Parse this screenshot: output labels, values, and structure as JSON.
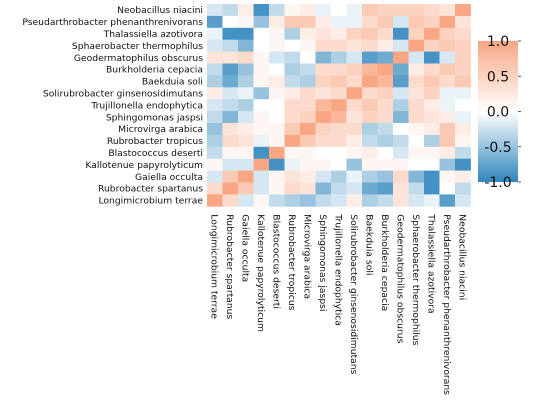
{
  "chart_data": {
    "type": "heatmap",
    "row_labels": [
      "Neobacillus niacini",
      "Pseudarthrobacter phenanthrenivorans",
      "Thalassiella azotivora",
      "Sphaerobacter thermophilus",
      "Geodermatophilus obscurus",
      "Burkholderia cepacia",
      "Baekduia soli",
      "Solirubrobacter ginsenosidimutans",
      "Trujillonella endophytica",
      "Sphingomonas jaspsi",
      "Microvirga arabica",
      "Rubrobacter tropicus",
      "Blastococcus deserti",
      "Kallotenue papyrolyticum",
      "Gaiella occulta",
      "Rubrobacter spartanus",
      "Longimicrobium terrae"
    ],
    "column_labels": [
      "Longimicrobium terrae",
      "Rubrobacter spartanus",
      "Gaiella occulta",
      "Kallotenue papyrolyticum",
      "Blastococcus deserti",
      "Rubrobacter tropicus",
      "Microvirga arabica",
      "Sphingomonas jaspsi",
      "Trujillonella endophytica",
      "Solirubrobacter ginsenosidimutans",
      "Baekduia soli",
      "Burkholderia cepacia",
      "Geodermatophilus obscurus",
      "Sphaerobacter thermophilus",
      "Thalassiella azotivora",
      "Pseudarthrobacter phenanthrenivorans",
      "Neobacillus niacini"
    ],
    "values": [
      [
        -0.2,
        -0.3,
        0.2,
        -0.9,
        -0.3,
        0.1,
        0.2,
        -0.1,
        0.0,
        -0.1,
        0.6,
        0.5,
        0.5,
        0.5,
        0.4,
        0.3,
        1.0
      ],
      [
        -0.8,
        0.0,
        0.1,
        -0.5,
        0.2,
        0.6,
        0.6,
        0.2,
        -0.1,
        -0.1,
        0.4,
        0.6,
        -0.2,
        0.6,
        0.5,
        1.0,
        0.3
      ],
      [
        -0.1,
        -0.9,
        -0.9,
        0.0,
        0.1,
        -0.4,
        0.2,
        0.3,
        0.2,
        0.5,
        0.6,
        0.4,
        -0.9,
        0.5,
        1.0,
        0.5,
        0.4
      ],
      [
        -0.2,
        -0.3,
        -0.6,
        0.0,
        0.1,
        0.0,
        0.1,
        0.4,
        0.4,
        0.3,
        0.4,
        0.2,
        -0.2,
        1.0,
        0.5,
        0.6,
        0.5
      ],
      [
        0.3,
        0.3,
        0.4,
        0.1,
        -0.2,
        -0.3,
        0.0,
        -0.6,
        -0.4,
        -0.2,
        -0.8,
        -0.7,
        1.0,
        -0.2,
        -0.9,
        -0.2,
        0.5
      ],
      [
        -0.3,
        -0.8,
        -0.5,
        0.1,
        0.0,
        -0.4,
        -0.3,
        0.4,
        0.4,
        0.5,
        0.8,
        1.0,
        -0.7,
        0.2,
        0.4,
        0.6,
        0.5
      ],
      [
        -0.4,
        -0.7,
        -0.4,
        0.1,
        0.2,
        -0.3,
        -0.4,
        0.5,
        0.6,
        0.4,
        1.0,
        0.8,
        -0.8,
        0.4,
        0.6,
        0.4,
        0.6
      ],
      [
        0.2,
        -0.2,
        -0.1,
        -0.5,
        0.1,
        0.2,
        0.4,
        0.3,
        0.4,
        1.0,
        0.4,
        0.5,
        -0.2,
        0.3,
        0.5,
        -0.1,
        -0.1
      ],
      [
        -0.2,
        -0.3,
        -0.4,
        0.0,
        0.0,
        0.4,
        0.4,
        0.8,
        1.0,
        0.4,
        0.6,
        0.4,
        -0.4,
        0.4,
        0.2,
        -0.1,
        0.0
      ],
      [
        -0.3,
        -0.6,
        -0.2,
        0.1,
        0.0,
        0.4,
        0.5,
        1.0,
        0.8,
        0.3,
        0.5,
        0.4,
        -0.6,
        0.4,
        0.3,
        0.2,
        -0.1
      ],
      [
        -0.5,
        0.3,
        0.2,
        0.1,
        0.1,
        0.6,
        1.0,
        0.5,
        0.4,
        0.4,
        -0.4,
        -0.3,
        0.0,
        0.1,
        0.2,
        0.6,
        0.2
      ],
      [
        -0.4,
        0.4,
        0.3,
        -0.1,
        0.1,
        1.0,
        0.6,
        0.4,
        0.4,
        0.2,
        -0.3,
        -0.4,
        -0.3,
        0.0,
        -0.4,
        0.6,
        0.1
      ],
      [
        -0.3,
        0.1,
        0.1,
        -0.9,
        1.0,
        0.1,
        0.1,
        0.0,
        0.0,
        0.1,
        0.2,
        0.0,
        -0.2,
        0.1,
        0.1,
        0.2,
        -0.3
      ],
      [
        0.1,
        -0.2,
        -0.2,
        1.0,
        -0.9,
        -0.1,
        0.1,
        0.1,
        0.0,
        -0.5,
        0.1,
        0.1,
        0.1,
        0.0,
        0.0,
        -0.5,
        -0.9
      ],
      [
        -0.2,
        0.6,
        1.0,
        -0.2,
        0.1,
        0.3,
        0.2,
        -0.2,
        -0.4,
        -0.1,
        -0.4,
        -0.5,
        0.4,
        -0.6,
        -0.9,
        0.1,
        0.2
      ],
      [
        0.4,
        1.0,
        0.6,
        -0.2,
        0.1,
        0.4,
        0.3,
        -0.6,
        -0.3,
        -0.2,
        -0.7,
        -0.8,
        0.3,
        -0.3,
        -0.9,
        0.0,
        -0.3
      ],
      [
        1.0,
        0.4,
        -0.2,
        0.1,
        -0.3,
        -0.4,
        -0.5,
        -0.3,
        -0.2,
        0.2,
        -0.4,
        -0.3,
        0.3,
        -0.2,
        -0.1,
        -0.8,
        -0.2
      ]
    ],
    "colorbar": {
      "min": -1.0,
      "max": 1.0,
      "ticks": [
        1.0,
        0.5,
        0.0,
        -0.5,
        -1.0
      ],
      "tick_labels": [
        "1.0",
        "0.5",
        "0.0",
        "-0.5",
        "-1.0"
      ],
      "colors": {
        "negative": "#2f86bc",
        "mid": "#ffffff",
        "positive": "#f8a683"
      }
    },
    "title": "",
    "xlabel": "",
    "ylabel": "",
    "grid": false
  }
}
